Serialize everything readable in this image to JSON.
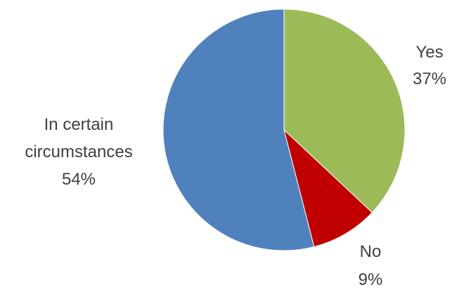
{
  "chart_data": {
    "type": "pie",
    "title": "",
    "slices": [
      {
        "label": "Yes",
        "value": 37,
        "value_label": "37%",
        "color": "#9BBB59"
      },
      {
        "label": "No",
        "value": 9,
        "value_label": "9%",
        "color": "#C00000"
      },
      {
        "label": "In certain circumstances",
        "value": 54,
        "value_label": "54%",
        "color": "#4F81BD"
      }
    ],
    "start": "12 o'clock",
    "direction": "clockwise",
    "legend": "none"
  }
}
